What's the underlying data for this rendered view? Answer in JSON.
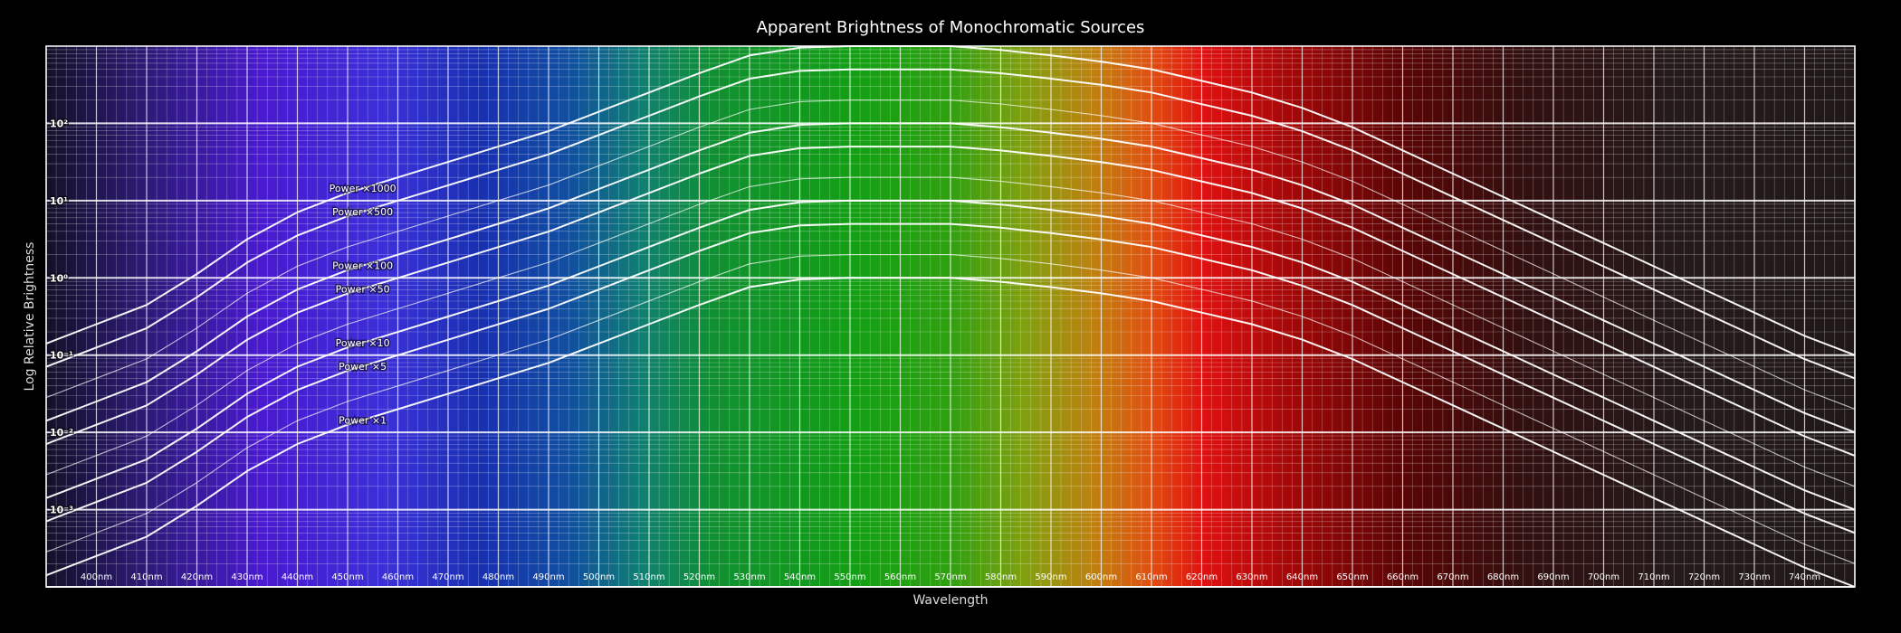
{
  "chart_data": {
    "type": "line",
    "title": "Apparent Brightness of Monochromatic Sources",
    "xlabel": "Wavelength",
    "ylabel": "Log Relative Brightness",
    "xlim": [
      390,
      750
    ],
    "ylim_log10": [
      -4,
      3
    ],
    "y_scale": "log",
    "grid": true,
    "background": "visible-spectrum gradient",
    "x_ticks": [
      "400nm",
      "410nm",
      "420nm",
      "430nm",
      "440nm",
      "450nm",
      "460nm",
      "470nm",
      "480nm",
      "490nm",
      "500nm",
      "510nm",
      "520nm",
      "530nm",
      "540nm",
      "550nm",
      "560nm",
      "570nm",
      "580nm",
      "590nm",
      "600nm",
      "610nm",
      "620nm",
      "630nm",
      "640nm",
      "650nm",
      "660nm",
      "670nm",
      "680nm",
      "690nm",
      "700nm",
      "710nm",
      "720nm",
      "730nm",
      "740nm"
    ],
    "y_ticks": [
      {
        "exp": 2,
        "label": "10²"
      },
      {
        "exp": 1,
        "label": "10¹"
      },
      {
        "exp": 0,
        "label": "10⁰"
      },
      {
        "exp": -1,
        "label": "10⁻¹"
      },
      {
        "exp": -2,
        "label": "10⁻²"
      },
      {
        "exp": -3,
        "label": "10⁻³"
      }
    ],
    "x": [
      390,
      400,
      410,
      420,
      430,
      440,
      450,
      460,
      470,
      480,
      490,
      500,
      510,
      520,
      530,
      540,
      550,
      560,
      570,
      580,
      590,
      600,
      610,
      620,
      630,
      640,
      650,
      660,
      670,
      680,
      690,
      700,
      710,
      720,
      730,
      740,
      750
    ],
    "base_log10": [
      -3.85,
      -3.6,
      -3.35,
      -2.95,
      -2.5,
      -2.15,
      -1.9,
      -1.7,
      -1.5,
      -1.3,
      -1.1,
      -0.85,
      -0.6,
      -0.35,
      -0.12,
      -0.02,
      0,
      0,
      0,
      -0.05,
      -0.12,
      -0.2,
      -0.3,
      -0.45,
      -0.6,
      -0.8,
      -1.05,
      -1.35,
      -1.65,
      -1.95,
      -2.25,
      -2.55,
      -2.85,
      -3.15,
      -3.45,
      -3.75,
      -4.0
    ],
    "series": [
      {
        "name": "Power ×1",
        "multiplier": 1
      },
      {
        "name": "",
        "multiplier": 2
      },
      {
        "name": "Power ×5",
        "multiplier": 5
      },
      {
        "name": "Power ×10",
        "multiplier": 10
      },
      {
        "name": "",
        "multiplier": 20
      },
      {
        "name": "Power ×50",
        "multiplier": 50
      },
      {
        "name": "Power ×100",
        "multiplier": 100
      },
      {
        "name": "",
        "multiplier": 200
      },
      {
        "name": "Power ×500",
        "multiplier": 500
      },
      {
        "name": "Power ×1000",
        "multiplier": 1000
      }
    ],
    "label_x": 453
  },
  "colors": {
    "background": "#000000",
    "grid_major": "#ffffff",
    "grid_minor": "#ffffff",
    "curve": "#ffffff"
  }
}
